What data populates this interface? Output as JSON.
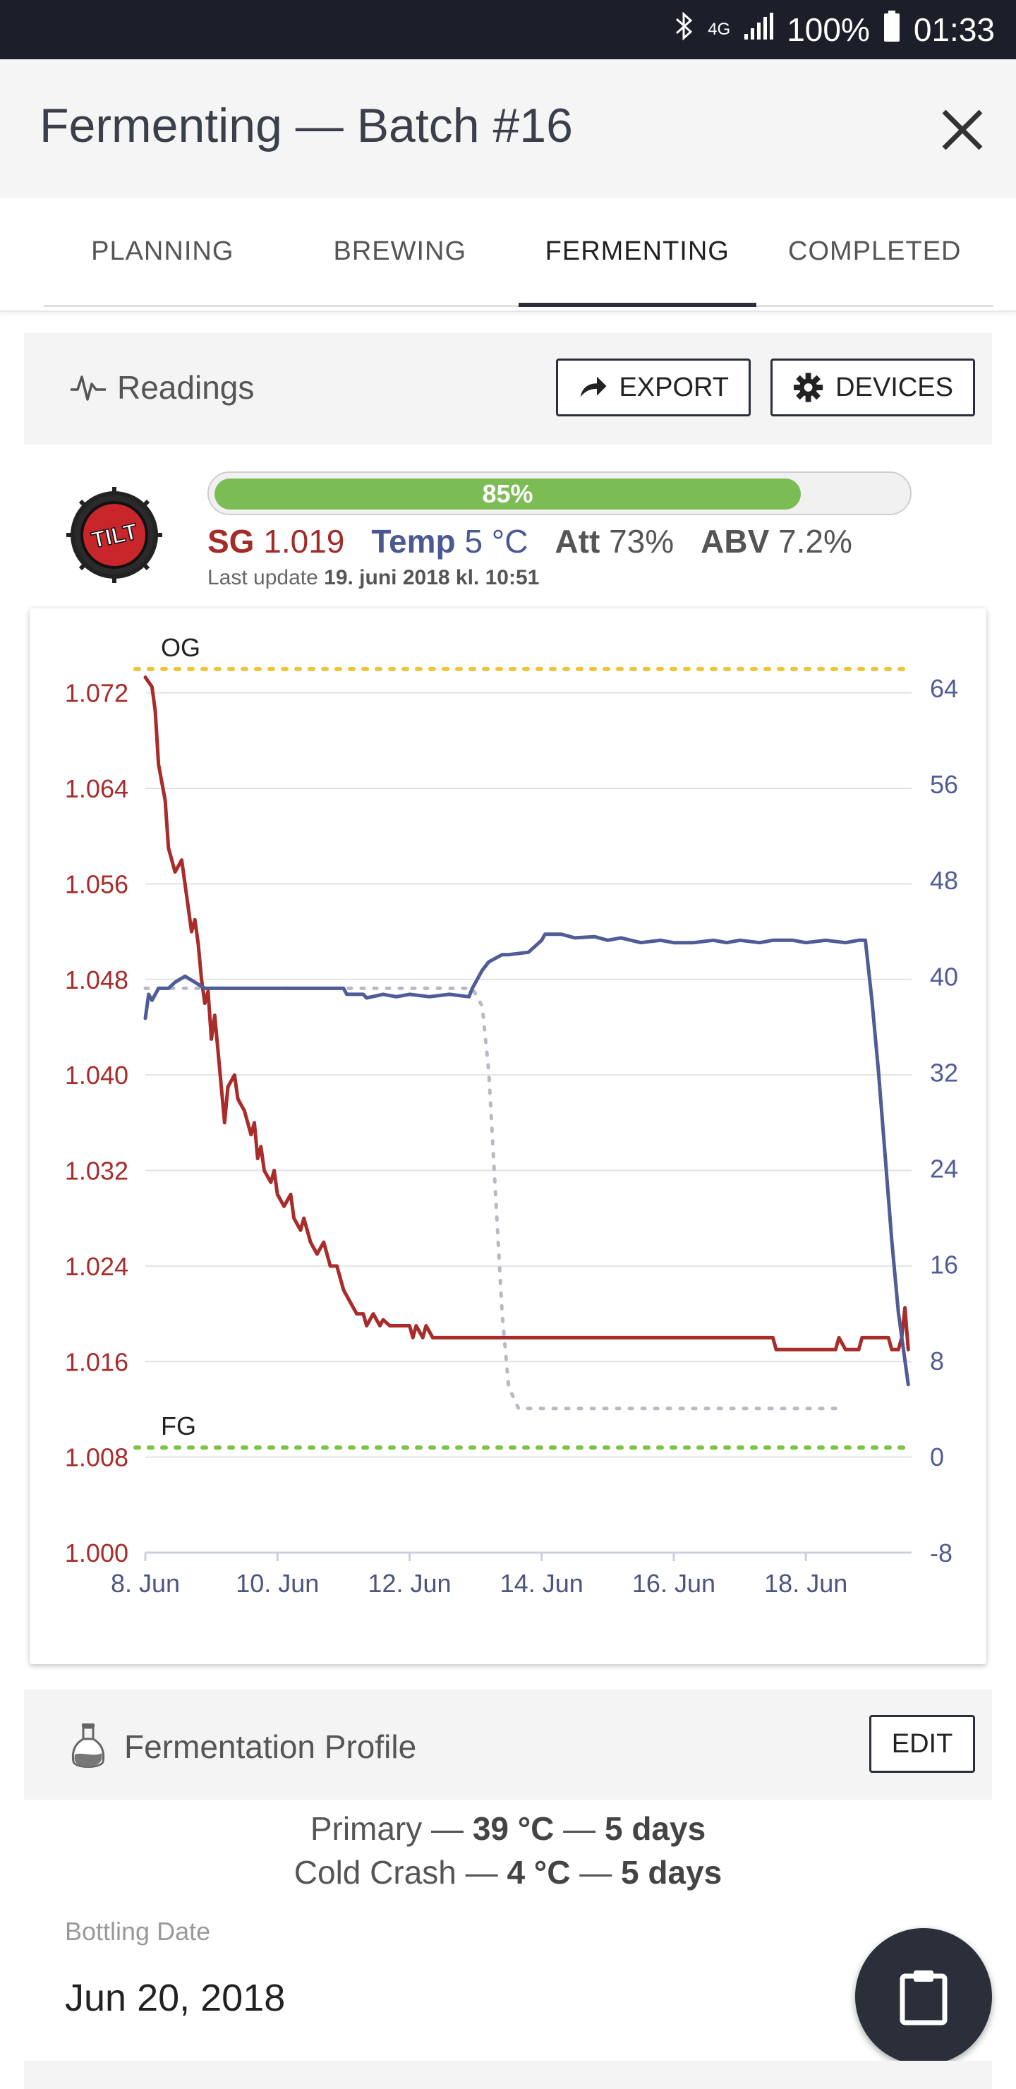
{
  "status_bar": {
    "network": "4G",
    "battery": "100%",
    "time": "01:33"
  },
  "app_bar": {
    "title": "Fermenting — Batch #16"
  },
  "tabs": [
    {
      "label": "PLANNING",
      "active": false
    },
    {
      "label": "BREWING",
      "active": false
    },
    {
      "label": "FERMENTING",
      "active": true
    },
    {
      "label": "COMPLETED",
      "active": false
    }
  ],
  "readings": {
    "label": "Readings",
    "export_label": "EXPORT",
    "devices_label": "DEVICES"
  },
  "tilt": {
    "logo_text": "TILT",
    "progress_label": "85%",
    "progress": 0.85,
    "sg_label": "SG",
    "sg_value": "1.019",
    "temp_label": "Temp",
    "temp_value": "5 °C",
    "att_label": "Att",
    "att_value": "73%",
    "abv_label": "ABV",
    "abv_value": "7.2%",
    "last_update_prefix": "Last update",
    "last_update_value": "19. juni 2018 kl. 10:51"
  },
  "chart_data": {
    "type": "line",
    "x_labels": [
      "8. Jun",
      "10. Jun",
      "12. Jun",
      "14. Jun",
      "16. Jun",
      "18. Jun"
    ],
    "xlim": [
      8,
      19.6
    ],
    "y_left": {
      "ticks": [
        "1.000",
        "1.008",
        "1.016",
        "1.024",
        "1.032",
        "1.040",
        "1.048",
        "1.056",
        "1.064",
        "1.072"
      ],
      "ylim": [
        1.0,
        1.0734
      ]
    },
    "y_right": {
      "ticks": [
        "-8",
        "0",
        "8",
        "16",
        "24",
        "32",
        "40",
        "48",
        "56",
        "64"
      ],
      "ylim": [
        -8,
        65
      ]
    },
    "og_label": "OG",
    "fg_label": "FG",
    "og_value": 1.074,
    "fg_value": 1.0088,
    "colors": {
      "sg": "#a82c2a",
      "temp": "#505c96",
      "og": "#f2c335",
      "fg": "#7cc346",
      "target": "#b7b9c4",
      "grid": "#e3e3e3"
    },
    "series": [
      {
        "axis": "left",
        "points": [
          [
            8.0,
            1.0733
          ],
          [
            8.1,
            1.0725
          ],
          [
            8.15,
            1.0705
          ],
          [
            8.2,
            1.066
          ],
          [
            8.3,
            1.063
          ],
          [
            8.35,
            1.059
          ],
          [
            8.45,
            1.057
          ],
          [
            8.55,
            1.058
          ],
          [
            8.6,
            1.056
          ],
          [
            8.7,
            1.052
          ],
          [
            8.75,
            1.053
          ],
          [
            8.8,
            1.051
          ],
          [
            8.85,
            1.048
          ],
          [
            8.9,
            1.046
          ],
          [
            8.95,
            1.047
          ],
          [
            9.0,
            1.043
          ],
          [
            9.05,
            1.045
          ],
          [
            9.1,
            1.042
          ],
          [
            9.2,
            1.036
          ],
          [
            9.25,
            1.039
          ],
          [
            9.35,
            1.04
          ],
          [
            9.4,
            1.038
          ],
          [
            9.5,
            1.037
          ],
          [
            9.6,
            1.035
          ],
          [
            9.65,
            1.036
          ],
          [
            9.7,
            1.033
          ],
          [
            9.75,
            1.034
          ],
          [
            9.8,
            1.032
          ],
          [
            9.9,
            1.031
          ],
          [
            9.95,
            1.032
          ],
          [
            10.0,
            1.03
          ],
          [
            10.1,
            1.029
          ],
          [
            10.2,
            1.03
          ],
          [
            10.25,
            1.028
          ],
          [
            10.35,
            1.027
          ],
          [
            10.4,
            1.028
          ],
          [
            10.5,
            1.026
          ],
          [
            10.6,
            1.025
          ],
          [
            10.7,
            1.026
          ],
          [
            10.8,
            1.024
          ],
          [
            10.9,
            1.024
          ],
          [
            11.0,
            1.022
          ],
          [
            11.1,
            1.021
          ],
          [
            11.2,
            1.02
          ],
          [
            11.3,
            1.02
          ],
          [
            11.35,
            1.019
          ],
          [
            11.45,
            1.02
          ],
          [
            11.55,
            1.019
          ],
          [
            11.6,
            1.0195
          ],
          [
            11.7,
            1.019
          ],
          [
            12.0,
            1.019
          ],
          [
            12.05,
            1.018
          ],
          [
            12.1,
            1.019
          ],
          [
            12.2,
            1.018
          ],
          [
            12.25,
            1.019
          ],
          [
            12.35,
            1.018
          ],
          [
            13.0,
            1.018
          ],
          [
            14.0,
            1.018
          ],
          [
            15.0,
            1.018
          ],
          [
            16.0,
            1.018
          ],
          [
            17.0,
            1.018
          ],
          [
            17.5,
            1.018
          ],
          [
            17.55,
            1.017
          ],
          [
            18.0,
            1.017
          ],
          [
            18.3,
            1.017
          ],
          [
            18.45,
            1.017
          ],
          [
            18.5,
            1.018
          ],
          [
            18.6,
            1.017
          ],
          [
            18.8,
            1.017
          ],
          [
            18.85,
            1.018
          ],
          [
            19.0,
            1.018
          ],
          [
            19.25,
            1.018
          ],
          [
            19.3,
            1.017
          ],
          [
            19.4,
            1.017
          ],
          [
            19.45,
            1.018
          ],
          [
            19.5,
            1.0205
          ],
          [
            19.55,
            1.017
          ]
        ]
      },
      {
        "axis": "right",
        "points": [
          [
            8.0,
            36.5
          ],
          [
            8.05,
            38.5
          ],
          [
            8.1,
            38.0
          ],
          [
            8.2,
            39.0
          ],
          [
            8.35,
            39.0
          ],
          [
            8.45,
            39.5
          ],
          [
            8.6,
            40.0
          ],
          [
            8.75,
            39.5
          ],
          [
            8.9,
            39.0
          ],
          [
            9.5,
            39.0
          ],
          [
            10.5,
            39.0
          ],
          [
            11.0,
            39.0
          ],
          [
            11.05,
            38.5
          ],
          [
            11.3,
            38.5
          ],
          [
            11.35,
            38.2
          ],
          [
            11.6,
            38.5
          ],
          [
            11.8,
            38.3
          ],
          [
            12.0,
            38.5
          ],
          [
            12.3,
            38.3
          ],
          [
            12.6,
            38.5
          ],
          [
            12.9,
            38.3
          ],
          [
            12.95,
            39.0
          ],
          [
            13.1,
            40.5
          ],
          [
            13.2,
            41.2
          ],
          [
            13.3,
            41.5
          ],
          [
            13.4,
            41.8
          ],
          [
            13.5,
            41.8
          ],
          [
            13.8,
            42.0
          ],
          [
            13.9,
            42.5
          ],
          [
            14.0,
            43.0
          ],
          [
            14.05,
            43.5
          ],
          [
            14.3,
            43.5
          ],
          [
            14.5,
            43.2
          ],
          [
            14.8,
            43.3
          ],
          [
            15.0,
            43.0
          ],
          [
            15.2,
            43.2
          ],
          [
            15.5,
            42.8
          ],
          [
            15.8,
            43.0
          ],
          [
            16.0,
            42.8
          ],
          [
            16.3,
            42.8
          ],
          [
            16.6,
            43.0
          ],
          [
            16.8,
            42.8
          ],
          [
            17.0,
            43.0
          ],
          [
            17.3,
            42.8
          ],
          [
            17.5,
            43.0
          ],
          [
            17.8,
            43.0
          ],
          [
            18.0,
            42.8
          ],
          [
            18.3,
            43.0
          ],
          [
            18.6,
            42.8
          ],
          [
            18.8,
            43.0
          ],
          [
            18.9,
            43.0
          ],
          [
            19.0,
            38.0
          ],
          [
            19.1,
            32.0
          ],
          [
            19.2,
            25.0
          ],
          [
            19.3,
            18.0
          ],
          [
            19.4,
            12.0
          ],
          [
            19.5,
            8.0
          ],
          [
            19.55,
            6.0
          ]
        ]
      },
      {
        "axis": "right",
        "points": [
          [
            8.0,
            39.0
          ],
          [
            12.2,
            39.0
          ],
          [
            12.95,
            39.0
          ],
          [
            13.1,
            37.5
          ],
          [
            13.2,
            32.0
          ],
          [
            13.3,
            22.0
          ],
          [
            13.4,
            12.0
          ],
          [
            13.5,
            5.8
          ],
          [
            13.65,
            4.0
          ],
          [
            13.75,
            4.0
          ],
          [
            14.0,
            4.0
          ],
          [
            16.0,
            4.0
          ],
          [
            18.5,
            4.0
          ]
        ]
      }
    ]
  },
  "profile": {
    "label": "Fermentation Profile",
    "edit_label": "EDIT",
    "steps": [
      {
        "name": "Primary",
        "temp": "39 °C",
        "duration": "5 days"
      },
      {
        "name": "Cold Crash",
        "temp": "4 °C",
        "duration": "5 days"
      }
    ],
    "separator": "—"
  },
  "bottling": {
    "label": "Bottling Date",
    "date": "Jun 20, 2018"
  }
}
